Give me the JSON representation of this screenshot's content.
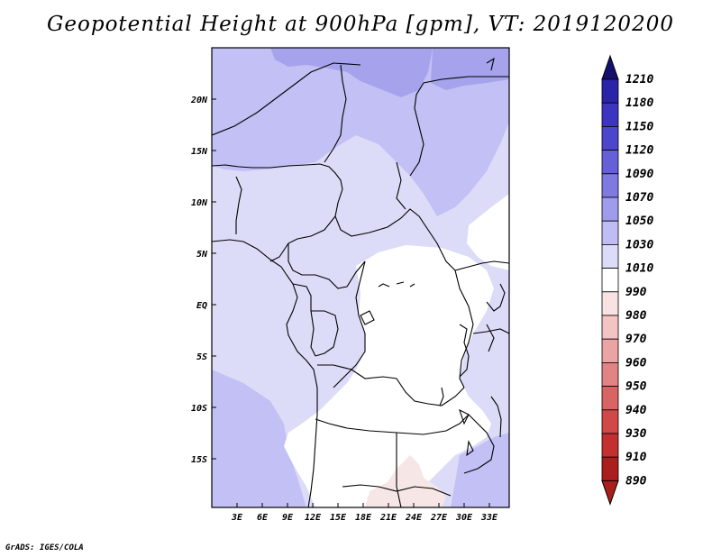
{
  "title": "Geopotential Height at 900hPa [gpm], VT: 2019120200",
  "credit": "GrADS: IGES/COLA",
  "map": {
    "lon_labels": [
      "3E",
      "6E",
      "9E",
      "12E",
      "15E",
      "18E",
      "21E",
      "24E",
      "27E",
      "30E",
      "33E"
    ],
    "lat_labels": [
      "20N",
      "15N",
      "10N",
      "5N",
      "EQ",
      "5S",
      "10S",
      "15S"
    ],
    "colors": {
      "h1010": "#dcdcf8",
      "h1030": "#c2c0f4",
      "h1050": "#a6a3ec",
      "h990": "#ffffff",
      "h980": "#f7e6e6",
      "border": "#000000"
    }
  },
  "colorbar": {
    "labels": [
      "1210",
      "1180",
      "1150",
      "1120",
      "1090",
      "1070",
      "1050",
      "1030",
      "1010",
      "990",
      "980",
      "970",
      "960",
      "950",
      "940",
      "930",
      "910",
      "890"
    ],
    "colors": [
      "#1f1a8c",
      "#2a25a8",
      "#3b35c0",
      "#4c46cc",
      "#6560d8",
      "#7f7ae2",
      "#a09cec",
      "#c0bdf4",
      "#dcdcf8",
      "#ffffff",
      "#f8e2e2",
      "#f2c4c4",
      "#eaa4a4",
      "#e08484",
      "#d86464",
      "#d04848",
      "#c23030",
      "#aa1e1e"
    ]
  }
}
